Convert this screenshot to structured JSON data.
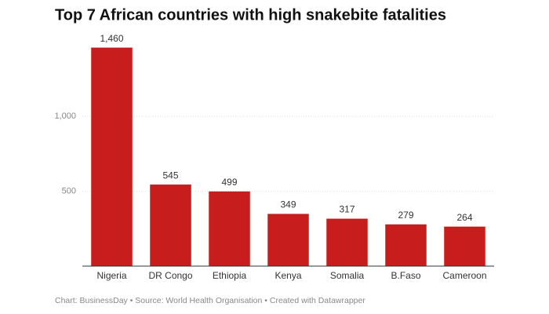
{
  "chart_data": {
    "type": "bar",
    "title": "Top 7 African countries with high snakebite fatalities",
    "categories": [
      "Nigeria",
      "DR Congo",
      "Ethiopia",
      "Kenya",
      "Somalia",
      "B.Faso",
      "Cameroon"
    ],
    "values": [
      1460,
      545,
      499,
      349,
      317,
      279,
      264
    ],
    "value_labels": [
      "1,460",
      "545",
      "499",
      "349",
      "317",
      "279",
      "264"
    ],
    "color": "#c71e1d",
    "ylim": [
      0,
      1500
    ],
    "yticks": [
      500,
      {
        "value": 1000,
        "label": "1,000"
      }
    ],
    "grid": true,
    "footer": "Chart: BusinessDay • Source: World Health Organisation • Created with Datawrapper"
  }
}
